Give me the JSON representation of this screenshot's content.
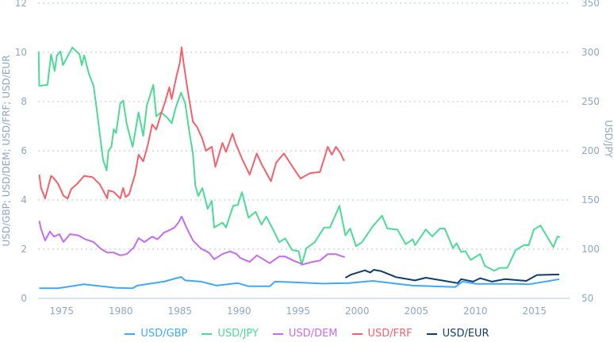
{
  "chart_data": {
    "type": "line",
    "title": "",
    "xlabel": "",
    "ylabel": "USD/GBP; USD/DEM; USD/FRF; USD/EUR",
    "y2label": "USD/JPY",
    "xlim": [
      1973,
      2018
    ],
    "ylim": [
      0,
      12
    ],
    "y2lim": [
      50,
      350
    ],
    "x_ticks": [
      "1975",
      "1980",
      "1985",
      "1990",
      "1995",
      "2000",
      "2005",
      "2010",
      "2015"
    ],
    "y_ticks": [
      "0",
      "2",
      "4",
      "6",
      "8",
      "10",
      "12"
    ],
    "y2_ticks": [
      "50",
      "100",
      "150",
      "200",
      "250",
      "300",
      "350"
    ],
    "grid": true,
    "legend_position": "bottom",
    "series": [
      {
        "name": "USD/GBP",
        "axis": "left",
        "color": "#3fa9f5",
        "x": [
          1973.1,
          1974.7,
          1976.9,
          1979.6,
          1981.0,
          1981.4,
          1983.65,
          1985.1,
          1985.45,
          1986.8,
          1988.1,
          1989.9,
          1990.8,
          1992.6,
          1993.05,
          1994.8,
          1997.1,
          1999.3,
          2001.3,
          2004.7,
          2008.3,
          2008.9,
          2010.05,
          2013.6,
          2014.5,
          2015.9,
          2017.1
        ],
        "y": [
          0.41,
          0.41,
          0.57,
          0.43,
          0.41,
          0.52,
          0.68,
          0.87,
          0.73,
          0.68,
          0.52,
          0.62,
          0.49,
          0.49,
          0.68,
          0.65,
          0.6,
          0.62,
          0.71,
          0.52,
          0.46,
          0.68,
          0.59,
          0.59,
          0.57,
          0.68,
          0.78
        ]
      },
      {
        "name": "USD/JPY",
        "axis": "right",
        "color": "#4cdb94",
        "x": [
          1973.05,
          1973.1,
          1973.8,
          1974.1,
          1974.4,
          1974.6,
          1974.9,
          1975.1,
          1975.9,
          1976.5,
          1976.7,
          1976.9,
          1977.3,
          1977.7,
          1977.95,
          1978.5,
          1978.8,
          1978.95,
          1979.2,
          1979.4,
          1979.6,
          1979.95,
          1980.2,
          1980.5,
          1981.0,
          1981.5,
          1981.9,
          1982.2,
          1982.75,
          1983.0,
          1983.4,
          1983.9,
          1984.3,
          1984.65,
          1985.1,
          1985.45,
          1985.8,
          1986.1,
          1986.3,
          1986.55,
          1986.9,
          1987.35,
          1987.7,
          1987.9,
          1988.6,
          1988.9,
          1989.5,
          1989.9,
          1990.25,
          1990.8,
          1991.4,
          1991.9,
          1992.3,
          1992.8,
          1993.4,
          1993.9,
          1994.5,
          1995.05,
          1995.3,
          1995.7,
          1996.4,
          1997.2,
          1997.7,
          1998.5,
          1999.0,
          1999.4,
          1999.9,
          2000.4,
          2001.3,
          2002.1,
          2002.55,
          2003.4,
          2004.1,
          2004.7,
          2004.9,
          2005.8,
          2006.35,
          2007.0,
          2007.4,
          2008.1,
          2008.4,
          2008.8,
          2009.15,
          2009.6,
          2010.4,
          2010.8,
          2011.6,
          2012.05,
          2012.7,
          2013.4,
          2014.1,
          2014.5,
          2014.95,
          2015.5,
          2016.1,
          2016.6,
          2016.95,
          2017.15
        ],
        "y": [
          301,
          266,
          267,
          298,
          281,
          297,
          301,
          287,
          305,
          298,
          287,
          297,
          278,
          266,
          243,
          191,
          180,
          200,
          204,
          222,
          218,
          248,
          251,
          227,
          204,
          239,
          215,
          246,
          267,
          235,
          239,
          234,
          228,
          244,
          259,
          248,
          219,
          197,
          165,
          154,
          162,
          141,
          149,
          122,
          127,
          122,
          144,
          145,
          158,
          132,
          138,
          125,
          133,
          122,
          107,
          111,
          99,
          98,
          84,
          101,
          107,
          122,
          122,
          144,
          114,
          121,
          103,
          107,
          123,
          134,
          121,
          120,
          105,
          110,
          104,
          120,
          113,
          121,
          121,
          101,
          106,
          97,
          98,
          89,
          95,
          83,
          78,
          81,
          81,
          99,
          104,
          104,
          120,
          124,
          112,
          102,
          113,
          112
        ]
      },
      {
        "name": "USD/DEM",
        "axis": "left",
        "color": "#c46cf0",
        "x": [
          1973.1,
          1973.25,
          1973.6,
          1974.0,
          1974.35,
          1974.8,
          1975.15,
          1975.7,
          1976.4,
          1977.0,
          1977.7,
          1978.3,
          1978.85,
          1979.4,
          1979.95,
          1980.5,
          1981.1,
          1981.5,
          1982.0,
          1982.65,
          1983.1,
          1983.65,
          1984.1,
          1984.55,
          1984.9,
          1985.15,
          1985.55,
          1986.1,
          1986.8,
          1987.45,
          1987.9,
          1988.6,
          1989.25,
          1989.8,
          1990.1,
          1990.9,
          1991.5,
          1992.05,
          1992.6,
          1993.4,
          1993.9,
          1994.6,
          1995.4,
          1996.2,
          1996.85,
          1997.5,
          1998.2,
          1998.75,
          1998.95
        ],
        "y": [
          3.15,
          2.83,
          2.35,
          2.72,
          2.51,
          2.61,
          2.29,
          2.61,
          2.56,
          2.4,
          2.29,
          2.02,
          1.86,
          1.86,
          1.75,
          1.8,
          2.07,
          2.45,
          2.29,
          2.51,
          2.4,
          2.67,
          2.77,
          2.88,
          3.1,
          3.33,
          2.88,
          2.35,
          2.02,
          1.86,
          1.59,
          1.8,
          1.91,
          1.8,
          1.65,
          1.48,
          1.75,
          1.59,
          1.43,
          1.7,
          1.7,
          1.54,
          1.38,
          1.48,
          1.54,
          1.8,
          1.8,
          1.7,
          1.68
        ]
      },
      {
        "name": "USD/FRF",
        "axis": "left",
        "color": "#f5606b",
        "x": [
          1973.1,
          1973.25,
          1973.6,
          1974.1,
          1974.35,
          1974.7,
          1975.15,
          1975.5,
          1975.8,
          1976.3,
          1976.9,
          1977.6,
          1978.2,
          1978.5,
          1978.85,
          1978.95,
          1979.4,
          1979.95,
          1980.2,
          1980.4,
          1980.7,
          1981.2,
          1981.5,
          1981.9,
          1982.3,
          1982.65,
          1983.0,
          1983.4,
          1983.75,
          1984.1,
          1984.3,
          1984.65,
          1985.0,
          1985.15,
          1985.3,
          1985.65,
          1986.1,
          1986.45,
          1986.9,
          1987.2,
          1987.7,
          1988.0,
          1988.6,
          1988.9,
          1989.45,
          1989.7,
          1990.25,
          1990.9,
          1991.5,
          1991.9,
          1992.15,
          1992.7,
          1993.15,
          1993.8,
          1994.6,
          1995.2,
          1996.0,
          1996.85,
          1997.2,
          1997.5,
          1997.85,
          1998.2,
          1998.6,
          1998.85,
          1998.95
        ],
        "y": [
          5.03,
          4.49,
          4.06,
          4.98,
          4.87,
          4.65,
          4.17,
          4.06,
          4.44,
          4.65,
          4.98,
          4.93,
          4.65,
          4.39,
          4.06,
          4.39,
          4.33,
          4.06,
          4.49,
          4.12,
          4.23,
          5.03,
          5.84,
          5.57,
          6.27,
          7.07,
          6.86,
          7.5,
          7.99,
          8.58,
          8.1,
          8.9,
          9.6,
          10.2,
          9.6,
          8.47,
          7.18,
          6.97,
          6.48,
          6.0,
          6.16,
          5.35,
          6.32,
          5.95,
          6.7,
          6.32,
          5.68,
          5.03,
          5.89,
          5.46,
          5.25,
          4.76,
          5.52,
          5.89,
          5.3,
          4.87,
          5.09,
          5.14,
          5.68,
          6.16,
          5.84,
          6.16,
          5.89,
          5.62,
          5.62
        ]
      },
      {
        "name": "USD/EUR",
        "axis": "left",
        "color": "#0f3d6e",
        "x": [
          1999.0,
          1999.5,
          2000.65,
          2001.1,
          2001.4,
          2002.0,
          2003.3,
          2004.9,
          2005.8,
          2007.4,
          2008.5,
          2008.8,
          2009.8,
          2010.4,
          2011.4,
          2012.5,
          2014.3,
          2015.2,
          2017.1
        ],
        "y": [
          0.84,
          0.97,
          1.14,
          1.05,
          1.16,
          1.11,
          0.86,
          0.73,
          0.84,
          0.71,
          0.62,
          0.78,
          0.68,
          0.82,
          0.68,
          0.78,
          0.71,
          0.95,
          0.97
        ]
      }
    ]
  }
}
